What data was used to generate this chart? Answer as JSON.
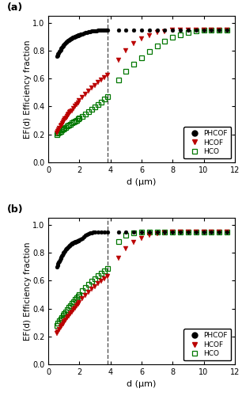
{
  "panel_a_label": "(a)",
  "panel_b_label": "(b)",
  "xlabel": "d (μm)",
  "ylabel": "EF(d) Efficiency fraction",
  "xlim": [
    0,
    12
  ],
  "ylim": [
    0.0,
    1.05
  ],
  "yticks": [
    0.0,
    0.2,
    0.4,
    0.6,
    0.8,
    1.0
  ],
  "xticks": [
    0,
    2,
    4,
    6,
    8,
    10,
    12
  ],
  "dashed_line_x": 3.8,
  "phcof_color": "#000000",
  "hcof_color": "#bb0000",
  "hco_color": "#007700",
  "panel_a": {
    "PHCOF_x": [
      0.54,
      0.58,
      0.62,
      0.66,
      0.7,
      0.74,
      0.78,
      0.82,
      0.86,
      0.9,
      0.94,
      0.98,
      1.02,
      1.06,
      1.1,
      1.14,
      1.18,
      1.22,
      1.26,
      1.3,
      1.34,
      1.38,
      1.42,
      1.46,
      1.5,
      1.54,
      1.58,
      1.62,
      1.66,
      1.7,
      1.74,
      1.78,
      1.82,
      1.86,
      1.9,
      1.94,
      1.98,
      2.02,
      2.1,
      2.2,
      2.3,
      2.4,
      2.5,
      2.6,
      2.7,
      2.8,
      2.9,
      3.0,
      3.1,
      3.2,
      3.3,
      3.4,
      3.5,
      3.6,
      3.7,
      3.8
    ],
    "PHCOF_y": [
      0.76,
      0.768,
      0.776,
      0.784,
      0.792,
      0.8,
      0.808,
      0.815,
      0.821,
      0.828,
      0.834,
      0.84,
      0.845,
      0.85,
      0.855,
      0.86,
      0.864,
      0.868,
      0.872,
      0.876,
      0.879,
      0.882,
      0.885,
      0.888,
      0.89,
      0.893,
      0.895,
      0.897,
      0.899,
      0.901,
      0.903,
      0.905,
      0.907,
      0.909,
      0.91,
      0.912,
      0.913,
      0.915,
      0.918,
      0.922,
      0.926,
      0.929,
      0.932,
      0.935,
      0.937,
      0.94,
      0.941,
      0.943,
      0.944,
      0.945,
      0.946,
      0.947,
      0.948,
      0.949,
      0.949,
      0.95
    ],
    "PHCOF_extrap_x": [
      4.5,
      5.0,
      5.5,
      6.0,
      6.5,
      7.0,
      7.5,
      8.0,
      8.5,
      9.0,
      9.5,
      10.0,
      10.5,
      11.0,
      11.5
    ],
    "PHCOF_extrap_y": [
      0.95,
      0.95,
      0.95,
      0.95,
      0.95,
      0.95,
      0.95,
      0.95,
      0.95,
      0.95,
      0.95,
      0.95,
      0.95,
      0.95,
      0.95
    ],
    "HCOF_x": [
      0.54,
      0.6,
      0.66,
      0.72,
      0.78,
      0.84,
      0.9,
      0.96,
      1.02,
      1.08,
      1.14,
      1.2,
      1.26,
      1.32,
      1.38,
      1.44,
      1.5,
      1.6,
      1.7,
      1.8,
      1.9,
      2.0,
      2.2,
      2.4,
      2.6,
      2.8,
      3.0,
      3.2,
      3.4,
      3.6,
      3.8
    ],
    "HCOF_y": [
      0.21,
      0.222,
      0.234,
      0.246,
      0.258,
      0.269,
      0.28,
      0.291,
      0.301,
      0.311,
      0.32,
      0.329,
      0.338,
      0.347,
      0.355,
      0.363,
      0.371,
      0.386,
      0.4,
      0.414,
      0.427,
      0.44,
      0.464,
      0.488,
      0.51,
      0.531,
      0.552,
      0.572,
      0.591,
      0.609,
      0.625
    ],
    "HCOF_extrap_x": [
      4.5,
      5.0,
      5.5,
      6.0,
      6.5,
      7.0,
      7.5,
      8.0,
      8.5,
      9.0,
      9.5,
      10.0,
      10.5,
      11.0,
      11.5
    ],
    "HCOF_extrap_y": [
      0.73,
      0.8,
      0.85,
      0.885,
      0.91,
      0.928,
      0.939,
      0.945,
      0.949,
      0.95,
      0.95,
      0.95,
      0.95,
      0.95,
      0.95
    ],
    "HCO_x": [
      0.54,
      0.62,
      0.7,
      0.78,
      0.86,
      0.94,
      1.02,
      1.1,
      1.2,
      1.3,
      1.4,
      1.5,
      1.6,
      1.7,
      1.8,
      1.9,
      2.0,
      2.2,
      2.4,
      2.6,
      2.8,
      3.0,
      3.2,
      3.4,
      3.6,
      3.8
    ],
    "HCO_y": [
      0.2,
      0.208,
      0.216,
      0.223,
      0.23,
      0.237,
      0.244,
      0.251,
      0.259,
      0.267,
      0.274,
      0.281,
      0.288,
      0.295,
      0.302,
      0.31,
      0.317,
      0.331,
      0.346,
      0.362,
      0.378,
      0.395,
      0.414,
      0.433,
      0.453,
      0.473
    ],
    "HCO_extrap_x": [
      4.5,
      5.0,
      5.5,
      6.0,
      6.5,
      7.0,
      7.5,
      8.0,
      8.5,
      9.0,
      9.5,
      10.0,
      10.5,
      11.0,
      11.5
    ],
    "HCO_extrap_y": [
      0.59,
      0.65,
      0.705,
      0.75,
      0.793,
      0.833,
      0.868,
      0.895,
      0.916,
      0.93,
      0.94,
      0.947,
      0.95,
      0.95,
      0.95
    ]
  },
  "panel_b": {
    "PHCOF_x": [
      0.54,
      0.58,
      0.62,
      0.66,
      0.7,
      0.74,
      0.78,
      0.82,
      0.86,
      0.9,
      0.94,
      0.98,
      1.02,
      1.06,
      1.1,
      1.14,
      1.18,
      1.22,
      1.26,
      1.3,
      1.34,
      1.38,
      1.42,
      1.46,
      1.5,
      1.54,
      1.58,
      1.62,
      1.66,
      1.7,
      1.74,
      1.78,
      1.82,
      1.86,
      1.9,
      1.94,
      1.98,
      2.1,
      2.2,
      2.3,
      2.4,
      2.5,
      2.6,
      2.7,
      2.8,
      2.9,
      3.0,
      3.2,
      3.4,
      3.6,
      3.8
    ],
    "PHCOF_y": [
      0.7,
      0.71,
      0.72,
      0.73,
      0.74,
      0.75,
      0.76,
      0.769,
      0.778,
      0.786,
      0.794,
      0.801,
      0.808,
      0.815,
      0.821,
      0.827,
      0.832,
      0.837,
      0.842,
      0.846,
      0.85,
      0.854,
      0.857,
      0.861,
      0.864,
      0.867,
      0.87,
      0.872,
      0.875,
      0.877,
      0.879,
      0.881,
      0.883,
      0.885,
      0.887,
      0.888,
      0.89,
      0.896,
      0.903,
      0.914,
      0.923,
      0.93,
      0.936,
      0.94,
      0.943,
      0.946,
      0.948,
      0.95,
      0.95,
      0.95,
      0.95
    ],
    "PHCOF_extrap_x": [
      4.5,
      5.0,
      5.5,
      6.0,
      6.5,
      7.0,
      7.5,
      8.0,
      8.5,
      9.0,
      9.5,
      10.0,
      10.5,
      11.0,
      11.5
    ],
    "PHCOF_extrap_y": [
      0.95,
      0.95,
      0.95,
      0.95,
      0.95,
      0.95,
      0.95,
      0.95,
      0.95,
      0.95,
      0.95,
      0.95,
      0.95,
      0.95,
      0.95
    ],
    "HCOF_x": [
      0.54,
      0.62,
      0.7,
      0.78,
      0.86,
      0.94,
      1.02,
      1.1,
      1.2,
      1.3,
      1.4,
      1.5,
      1.6,
      1.7,
      1.8,
      1.9,
      2.0,
      2.2,
      2.4,
      2.6,
      2.8,
      3.0,
      3.2,
      3.4,
      3.6,
      3.8
    ],
    "HCOF_y": [
      0.22,
      0.235,
      0.25,
      0.265,
      0.279,
      0.292,
      0.305,
      0.318,
      0.333,
      0.348,
      0.362,
      0.376,
      0.39,
      0.404,
      0.418,
      0.431,
      0.444,
      0.469,
      0.493,
      0.516,
      0.538,
      0.559,
      0.579,
      0.598,
      0.616,
      0.633
    ],
    "HCOF_extrap_x": [
      4.5,
      5.0,
      5.5,
      6.0,
      6.5,
      7.0,
      7.5,
      8.0,
      8.5,
      9.0,
      9.5,
      10.0,
      10.5,
      11.0,
      11.5
    ],
    "HCOF_extrap_y": [
      0.76,
      0.83,
      0.875,
      0.905,
      0.925,
      0.937,
      0.944,
      0.948,
      0.95,
      0.95,
      0.95,
      0.95,
      0.95,
      0.95,
      0.95
    ],
    "HCO_x": [
      0.54,
      0.62,
      0.7,
      0.78,
      0.86,
      0.94,
      1.02,
      1.1,
      1.2,
      1.3,
      1.4,
      1.5,
      1.6,
      1.7,
      1.8,
      1.9,
      2.0,
      2.2,
      2.4,
      2.6,
      2.8,
      3.0,
      3.2,
      3.4,
      3.6,
      3.8
    ],
    "HCO_y": [
      0.28,
      0.295,
      0.31,
      0.324,
      0.337,
      0.35,
      0.363,
      0.376,
      0.392,
      0.407,
      0.421,
      0.436,
      0.449,
      0.463,
      0.476,
      0.489,
      0.502,
      0.526,
      0.549,
      0.572,
      0.594,
      0.615,
      0.635,
      0.654,
      0.672,
      0.69
    ],
    "HCO_extrap_x": [
      4.5,
      5.0,
      5.5,
      6.0,
      6.5,
      7.0,
      7.5,
      8.0,
      8.5,
      9.0,
      9.5,
      10.0,
      10.5,
      11.0,
      11.5
    ],
    "HCO_extrap_y": [
      0.88,
      0.923,
      0.942,
      0.95,
      0.95,
      0.95,
      0.95,
      0.95,
      0.95,
      0.95,
      0.95,
      0.95,
      0.95,
      0.95,
      0.95
    ]
  }
}
